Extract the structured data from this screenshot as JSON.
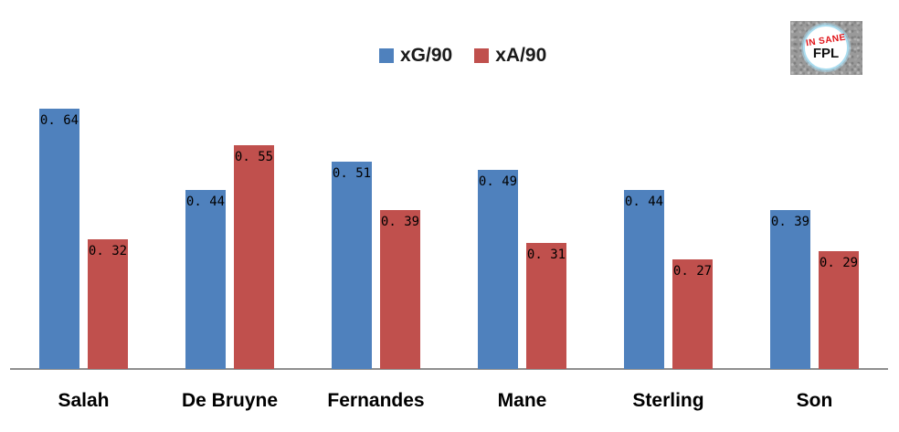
{
  "chart_data": {
    "type": "bar",
    "title": "",
    "xlabel": "",
    "ylabel": "",
    "categories": [
      "Salah",
      "De Bruyne",
      "Fernandes",
      "Mane",
      "Sterling",
      "Son"
    ],
    "series": [
      {
        "name": "xG/90",
        "color": "#4f81bd",
        "values": [
          0.64,
          0.44,
          0.51,
          0.49,
          0.44,
          0.39
        ],
        "labels": [
          "0. 64",
          "0. 44",
          "0. 51",
          "0. 49",
          "0. 44",
          "0. 39"
        ]
      },
      {
        "name": "xA/90",
        "color": "#c0504d",
        "values": [
          0.32,
          0.55,
          0.39,
          0.31,
          0.27,
          0.29
        ],
        "labels": [
          "0. 32",
          "0. 55",
          "0. 39",
          "0. 31",
          "0. 27",
          "0. 29"
        ]
      }
    ],
    "ylim": [
      0,
      0.7
    ],
    "grid": false,
    "legend_position": "top-center",
    "value_labels": "inside-top",
    "axis_color": "#8f8f8f"
  },
  "legend": {
    "items": [
      {
        "label": "xG/90",
        "color": "#4f81bd"
      },
      {
        "label": "xA/90",
        "color": "#c0504d"
      }
    ]
  },
  "logo": {
    "line1": "IN SANE",
    "line2": "FPL"
  }
}
